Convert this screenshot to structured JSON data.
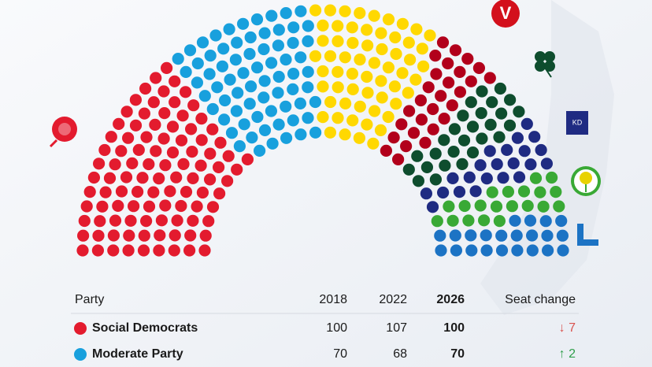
{
  "chart_data": {
    "type": "parliament",
    "values": [
      100,
      70,
      60,
      28,
      27,
      22,
      20,
      22
    ],
    "colors": [
      "#e31b2e",
      "#18a0dd",
      "#ffd800",
      "#b2001b",
      "#0e4d2e",
      "#1f2b82",
      "#39a935",
      "#1c73c4"
    ],
    "logos": [
      "V",
      "KD"
    ]
  },
  "table": {
    "header": [
      "Party",
      "2018",
      "2022",
      "2026",
      "Seat change"
    ],
    "rows": [
      {
        "color": "#e31b2e",
        "cells": [
          "Social Democrats",
          "100",
          "107",
          "100",
          "↓ 7"
        ],
        "change_color": "#d9534f"
      },
      {
        "color": "#18a0dd",
        "cells": [
          "Moderate Party",
          "70",
          "68",
          "70",
          "↑ 2"
        ],
        "change_color": "#2e9e4a"
      }
    ]
  }
}
